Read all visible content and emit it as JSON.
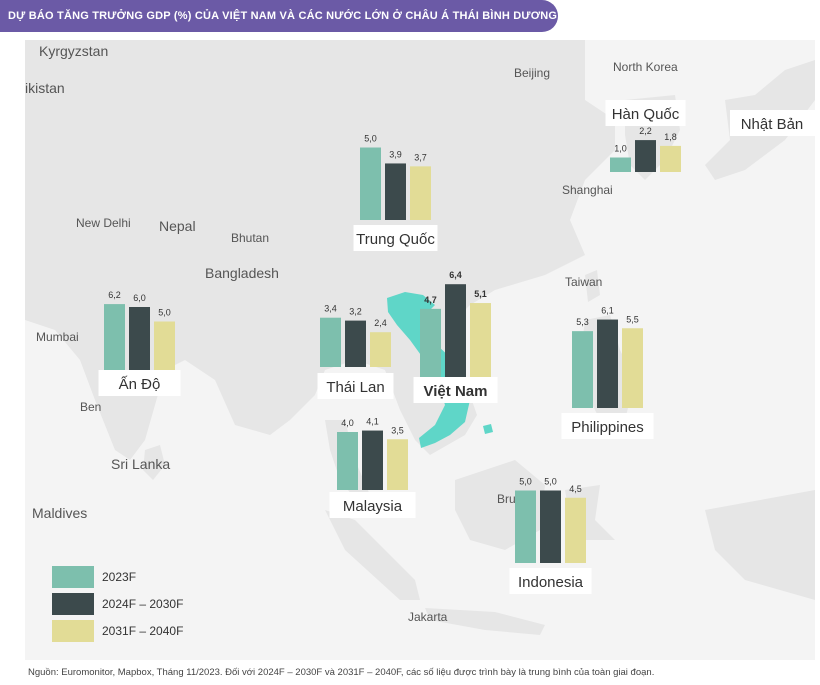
{
  "title": "DỰ BÁO TĂNG TRƯỞNG GDP (%) CỦA VIỆT NAM VÀ CÁC NƯỚC LỚN Ở CHÂU Á THÁI BÌNH DƯƠNG",
  "source": "Nguồn: Euromonitor, Mapbox, Tháng 11/2023. Đối với 2024F – 2030F và 2031F – 2040F, các số liệu được trình bày là trung bình của toàn giai đoạn.",
  "colors": {
    "header": "#6b5aa6",
    "s2023": "#7dbfad",
    "s2024": "#3c4a4c",
    "s2031": "#e2dc96",
    "vietnam_land": "#5fd6c8",
    "sea": "#ffffff",
    "land": "#ededed"
  },
  "map_labels": [
    "Kyrgyzstan",
    "ikistan",
    "Beijing",
    "North Korea",
    "New Delhi",
    "Nepal",
    "Bhutan",
    "Bangladesh",
    "Shanghai",
    "Taiwan",
    "Mumbai",
    "Ben",
    "Sri Lanka",
    "Maldives",
    "Bru",
    "Jakarta"
  ],
  "chart_data": {
    "type": "bar",
    "title": "DỰ BÁO TĂNG TRƯỞNG GDP (%) CỦA VIỆT NAM VÀ CÁC NƯỚC LỚN Ở CHÂU Á THÁI BÌNH DƯƠNG",
    "series_names": [
      "2023F",
      "2024F – 2030F",
      "2031F – 2040F"
    ],
    "countries": [
      {
        "name": "Trung Quốc",
        "values": [
          5.0,
          3.9,
          3.7
        ],
        "labels": [
          "5,0",
          "3,9",
          "3,7"
        ]
      },
      {
        "name": "Hàn Quốc",
        "values": [
          1.0,
          2.2,
          1.8
        ],
        "labels": [
          "1,0",
          "2,2",
          "1,8"
        ]
      },
      {
        "name": "Nhật Bản",
        "values": [],
        "labels": []
      },
      {
        "name": "Ấn Độ",
        "values": [
          6.2,
          6.0,
          5.0
        ],
        "labels": [
          "6,2",
          "6,0",
          "5,0"
        ]
      },
      {
        "name": "Thái Lan",
        "values": [
          3.4,
          3.2,
          2.4
        ],
        "labels": [
          "3,4",
          "3,2",
          "2,4"
        ]
      },
      {
        "name": "Việt Nam",
        "values": [
          4.7,
          6.4,
          5.1
        ],
        "labels": [
          "4,7",
          "6,4",
          "5,1"
        ],
        "highlight": true
      },
      {
        "name": "Philippines",
        "values": [
          5.3,
          6.1,
          5.5
        ],
        "labels": [
          "5,3",
          "6,1",
          "5,5"
        ]
      },
      {
        "name": "Malaysia",
        "values": [
          4.0,
          4.1,
          3.5
        ],
        "labels": [
          "4,0",
          "4,1",
          "3,5"
        ]
      },
      {
        "name": "Indonesia",
        "values": [
          5.0,
          5.0,
          4.5
        ],
        "labels": [
          "5,0",
          "5,0",
          "4,5"
        ]
      }
    ]
  },
  "legend": [
    {
      "label": "2023F",
      "color": "#7dbfad"
    },
    {
      "label": "2024F – 2030F",
      "color": "#3c4a4c"
    },
    {
      "label": "2031F – 2040F",
      "color": "#e2dc96"
    }
  ]
}
